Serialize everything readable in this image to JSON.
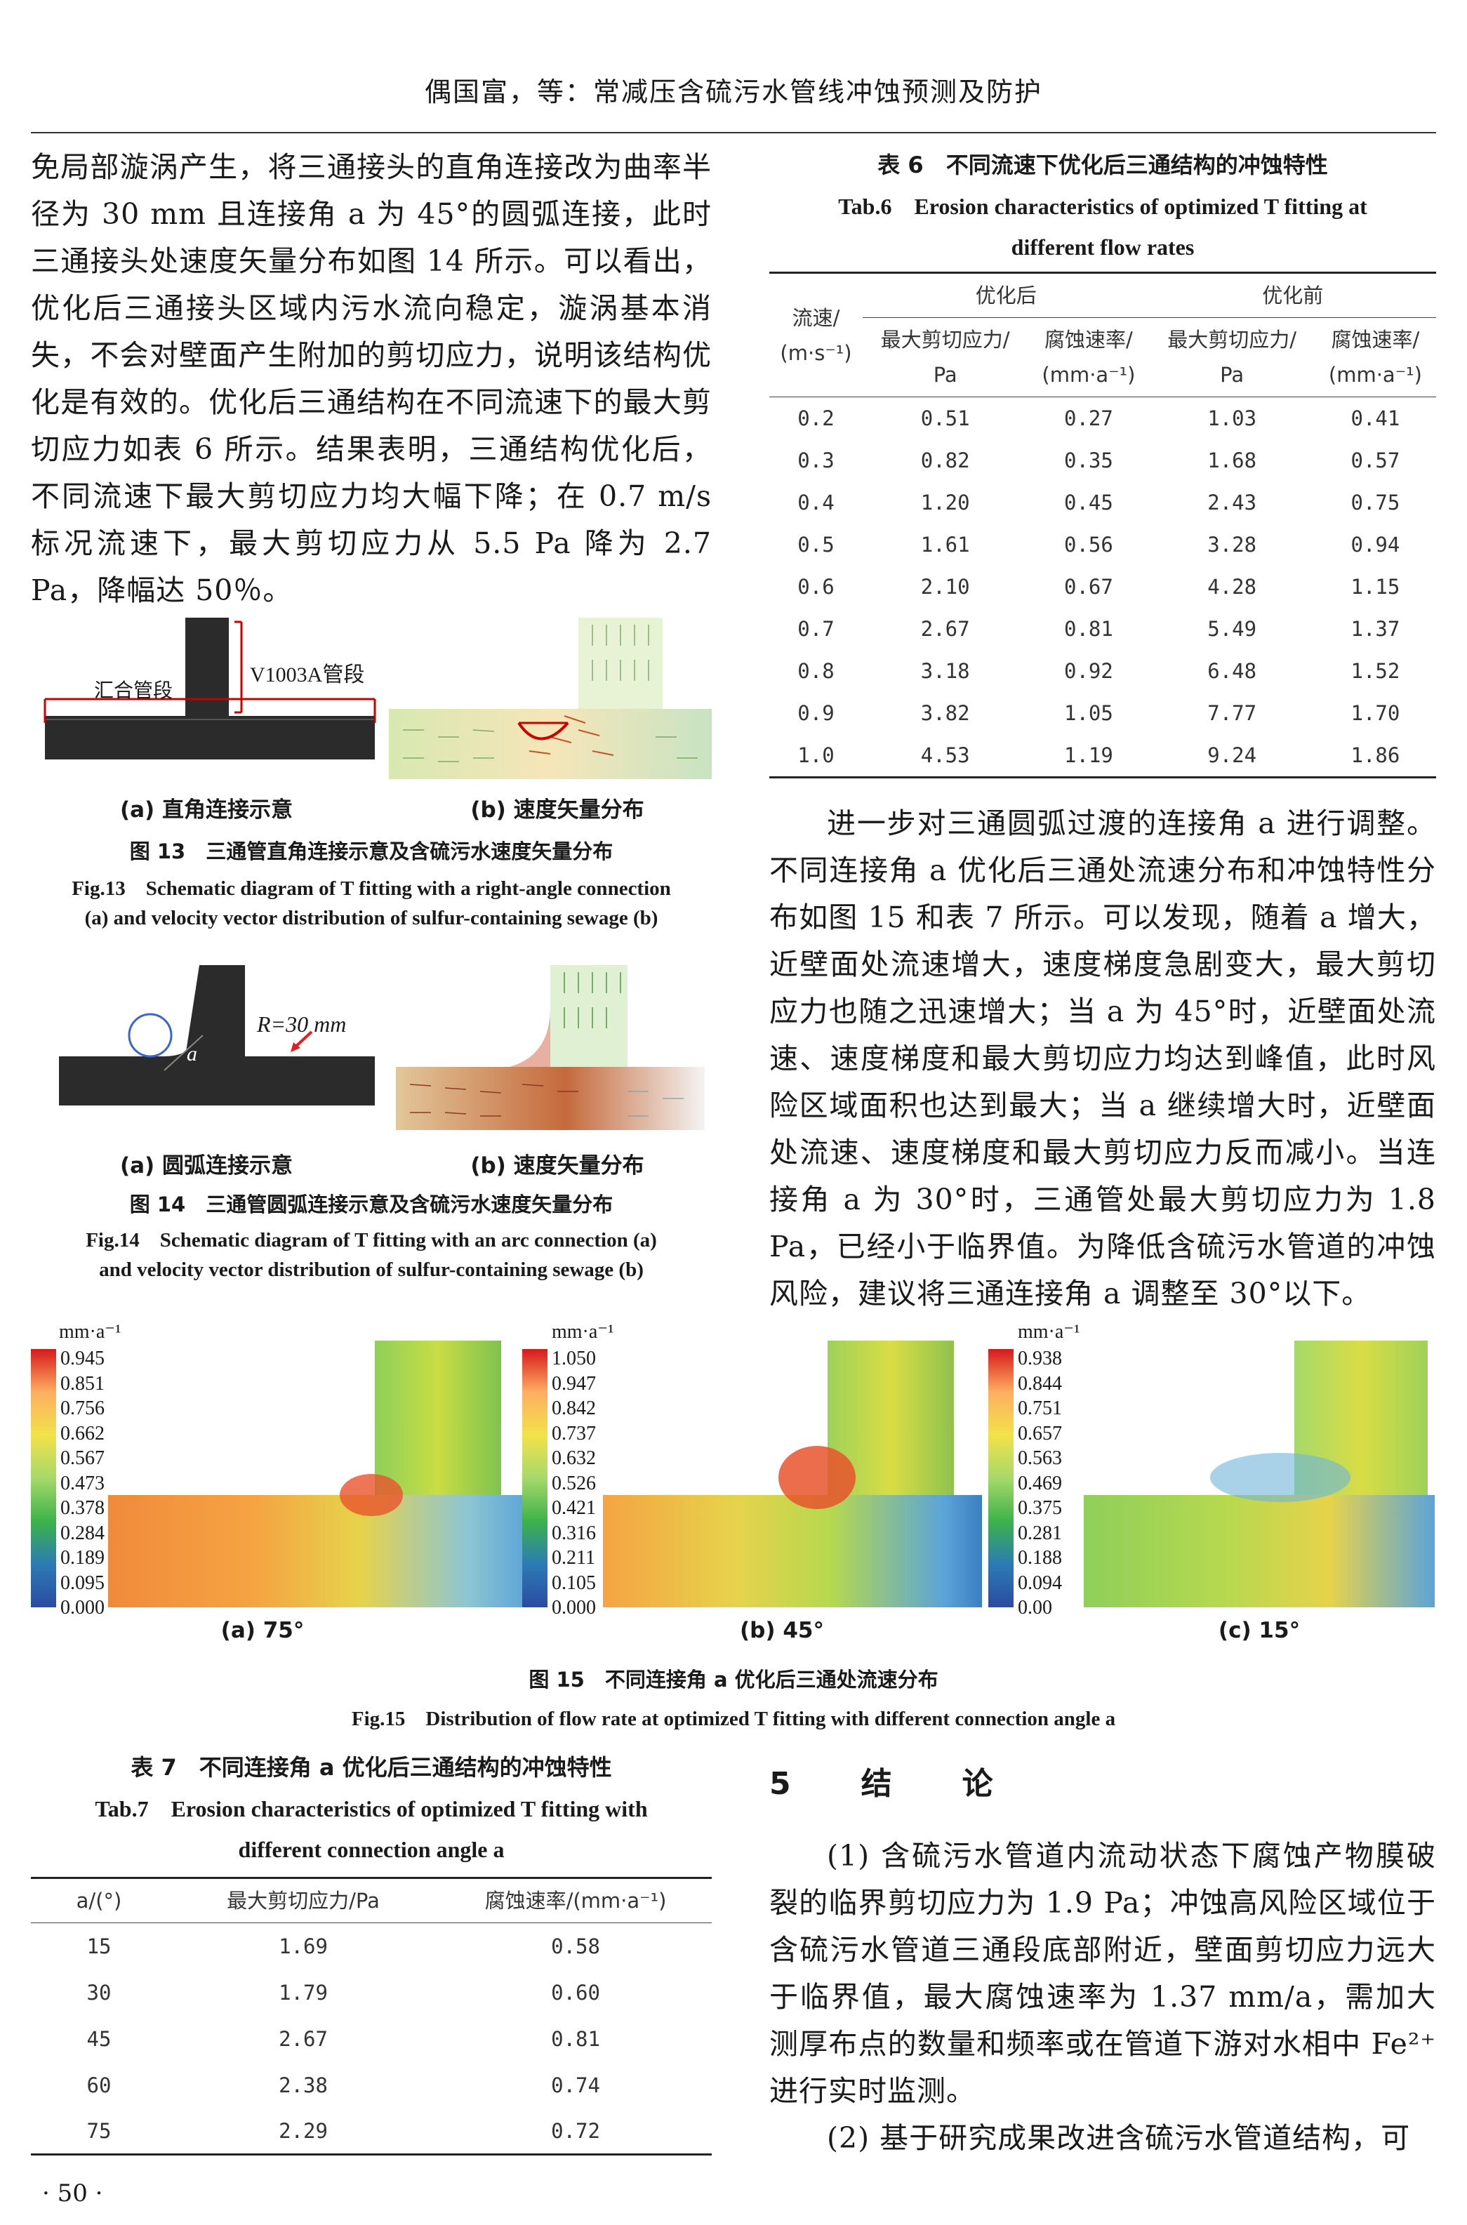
{
  "header": {
    "title": "偶国富，等：常减压含硫污水管线冲蚀预测及防护"
  },
  "left_top_paragraph": "免局部漩涡产生，将三通接头的直角连接改为曲率半径为 30 mm 且连接角 a 为 45°的圆弧连接，此时三通接头处速度矢量分布如图 14 所示。可以看出，优化后三通接头区域内污水流向稳定，漩涡基本消失，不会对壁面产生附加的剪切应力，说明该结构优化是有效的。优化后三通结构在不同流速下的最大剪切应力如表 6 所示。结果表明，三通结构优化后，不同流速下最大剪切应力均大幅下降；在 0.7 m/s 标况流速下，最大剪切应力从 5.5 Pa 降为 2.7 Pa，降幅达 50％。",
  "fig13": {
    "label_header": "汇合管段",
    "label_pipe": "V1003A管段",
    "sub_a": "(a) 直角连接示意",
    "sub_b": "(b) 速度矢量分布",
    "caption_cn": "图 13　三通管直角连接示意及含硫污水速度矢量分布",
    "caption_en_1": "Fig.13　Schematic diagram of T fitting with a right-angle connection",
    "caption_en_2": "(a) and velocity vector distribution of sulfur-containing sewage (b)"
  },
  "fig14": {
    "radius_label": "R=30 mm",
    "angle_label": "a",
    "sub_a": "(a) 圆弧连接示意",
    "sub_b": "(b) 速度矢量分布",
    "caption_cn": "图 14　三通管圆弧连接示意及含硫污水速度矢量分布",
    "caption_en_1": "Fig.14　Schematic diagram of T fitting with an arc connection (a)",
    "caption_en_2": "and velocity vector distribution of sulfur-containing sewage (b)"
  },
  "table6": {
    "caption_cn": "表 6　不同流速下优化后三通结构的冲蚀特性",
    "caption_en_1": "Tab.6　Erosion characteristics of optimized T fitting at",
    "caption_en_2": "different flow rates",
    "col_speed": "流速/",
    "col_speed_unit": "(m·s⁻¹)",
    "group_after": "优化后",
    "group_before": "优化前",
    "col_shear": "最大剪切应力/",
    "col_shear_unit": "Pa",
    "col_rate": "腐蚀速率/",
    "col_rate_unit": "(mm·a⁻¹)",
    "rows": [
      [
        "0.2",
        "0.51",
        "0.27",
        "1.03",
        "0.41"
      ],
      [
        "0.3",
        "0.82",
        "0.35",
        "1.68",
        "0.57"
      ],
      [
        "0.4",
        "1.20",
        "0.45",
        "2.43",
        "0.75"
      ],
      [
        "0.5",
        "1.61",
        "0.56",
        "3.28",
        "0.94"
      ],
      [
        "0.6",
        "2.10",
        "0.67",
        "4.28",
        "1.15"
      ],
      [
        "0.7",
        "2.67",
        "0.81",
        "5.49",
        "1.37"
      ],
      [
        "0.8",
        "3.18",
        "0.92",
        "6.48",
        "1.52"
      ],
      [
        "0.9",
        "3.82",
        "1.05",
        "7.77",
        "1.70"
      ],
      [
        "1.0",
        "4.53",
        "1.19",
        "9.24",
        "1.86"
      ]
    ]
  },
  "right_paragraph": "进一步对三通圆弧过渡的连接角 a 进行调整。不同连接角 a 优化后三通处流速分布和冲蚀特性分布如图 15 和表 7 所示。可以发现，随着 a 增大，近壁面处流速增大，速度梯度急剧变大，最大剪切应力也随之迅速增大；当 a 为 45°时，近壁面处流速、速度梯度和最大剪切应力均达到峰值，此时风险区域面积也达到最大；当 a 继续增大时，近壁面处流速、速度梯度和最大剪切应力反而减小。当连接角 a 为 30°时，三通管处最大剪切应力为 1.8 Pa，已经小于临界值。为降低含硫污水管道的冲蚀风险，建议将三通连接角 a 调整至 30°以下。",
  "fig15": {
    "unit": "mm·a⁻¹",
    "panels": [
      {
        "sub": "(a) 75°",
        "ticks": [
          "0.945",
          "0.851",
          "0.756",
          "0.662",
          "0.567",
          "0.473",
          "0.378",
          "0.284",
          "0.189",
          "0.095",
          "0.000"
        ]
      },
      {
        "sub": "(b) 45°",
        "ticks": [
          "1.050",
          "0.947",
          "0.842",
          "0.737",
          "0.632",
          "0.526",
          "0.421",
          "0.316",
          "0.211",
          "0.105",
          "0.000"
        ]
      },
      {
        "sub": "(c) 15°",
        "ticks": [
          "0.938",
          "0.844",
          "0.751",
          "0.657",
          "0.563",
          "0.469",
          "0.375",
          "0.281",
          "0.188",
          "0.094",
          "0.00"
        ]
      }
    ],
    "caption_cn": "图 15　不同连接角 a 优化后三通处流速分布",
    "caption_en": "Fig.15　Distribution of flow rate at optimized T fitting with different connection angle a"
  },
  "table7": {
    "caption_cn": "表 7　不同连接角 a 优化后三通结构的冲蚀特性",
    "caption_en_1": "Tab.7　Erosion characteristics of optimized T fitting with",
    "caption_en_2": "different connection angle a",
    "col_angle": "a/(°)",
    "col_shear": "最大剪切应力/Pa",
    "col_rate": "腐蚀速率/(mm·a⁻¹)",
    "rows": [
      [
        "15",
        "1.69",
        "0.58"
      ],
      [
        "30",
        "1.79",
        "0.60"
      ],
      [
        "45",
        "2.67",
        "0.81"
      ],
      [
        "60",
        "2.38",
        "0.74"
      ],
      [
        "75",
        "2.29",
        "0.72"
      ]
    ]
  },
  "section5": {
    "title": "5　结　论",
    "p1": "(1) 含硫污水管道内流动状态下腐蚀产物膜破裂的临界剪切应力为 1.9 Pa；冲蚀高风险区域位于含硫污水管道三通段底部附近，壁面剪切应力远大于临界值，最大腐蚀速率为 1.37 mm/a，需加大测厚布点的数量和频率或在管道下游对水相中 Fe²⁺ 进行实时监测。",
    "p2": "(2) 基于研究成果改进含硫污水管道结构，可"
  },
  "footer": {
    "page": "· 50 ·"
  }
}
